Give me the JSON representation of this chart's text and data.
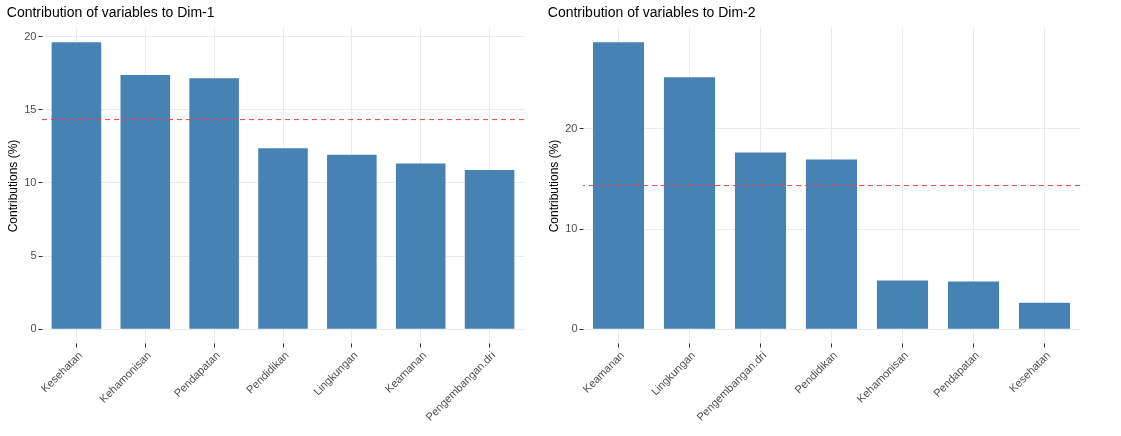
{
  "chart_data": [
    {
      "type": "bar",
      "title": "Contribution of variables to Dim-1",
      "ylabel": "Contributions (%)",
      "categories": [
        "Kesehatan",
        "Kehamonisan",
        "Pendapatan",
        "Pendidikan",
        "Lingkungan",
        "Keamanan",
        "Pengembangan.dri"
      ],
      "values": [
        19.57,
        17.33,
        17.11,
        12.33,
        11.88,
        11.29,
        10.84
      ],
      "color": "#4682b4",
      "ylim": [
        -0.98,
        20.55
      ],
      "yticks": [
        0,
        5,
        10,
        15,
        20
      ],
      "grid": true,
      "ref_lines": [
        {
          "axis": "y",
          "value": 14.29,
          "color": "#e8453c",
          "line_style": "dashed"
        }
      ]
    },
    {
      "type": "bar",
      "title": "Contribution of variables to Dim-2",
      "ylabel": "Contributions (%)",
      "categories": [
        "Keamanan",
        "Lingkungan",
        "Pengembangan.dri",
        "Pendidikan",
        "Kehamonisan",
        "Pendapatan",
        "Kesehatan"
      ],
      "values": [
        28.6,
        25.1,
        17.6,
        16.9,
        4.8,
        4.7,
        2.6
      ],
      "color": "#4682b4",
      "ylim": [
        -1.43,
        30.03
      ],
      "yticks": [
        0,
        10,
        20
      ],
      "grid": true,
      "ref_lines": [
        {
          "axis": "y",
          "value": 14.29,
          "color": "#e8453c",
          "line_style": "dashed"
        }
      ]
    }
  ]
}
